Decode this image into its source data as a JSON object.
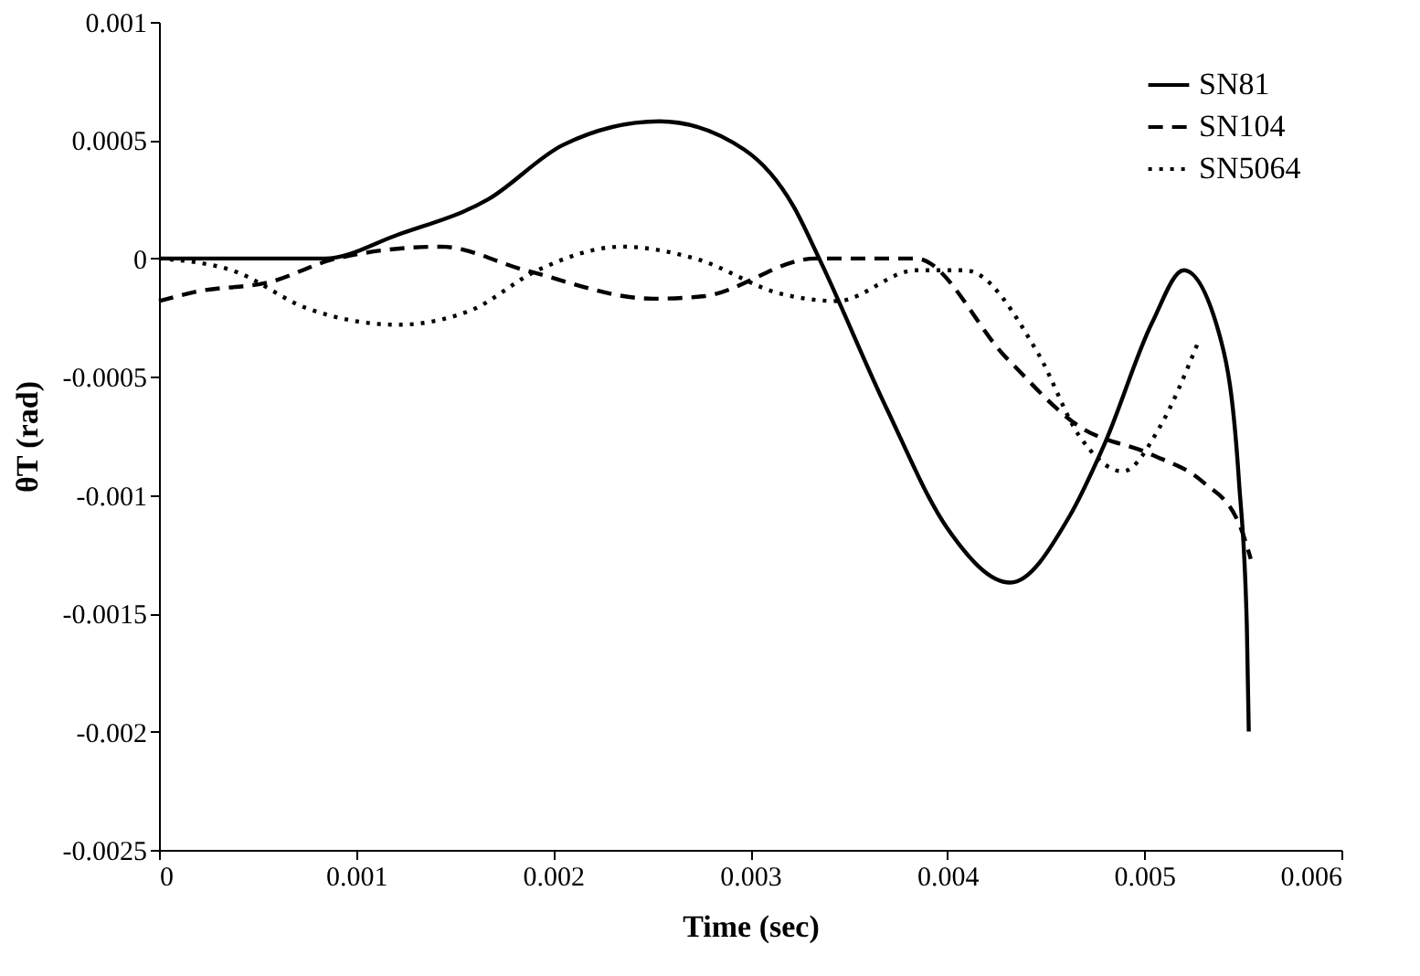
{
  "chart_data": {
    "type": "line",
    "xlabel": "Time (sec)",
    "ylabel": "θT (rad)",
    "xlim": [
      0,
      0.006
    ],
    "xticks": [
      0,
      0.001,
      0.002,
      0.003,
      0.004,
      0.005,
      0.006
    ],
    "ylim": [
      -0.0025,
      0.001
    ],
    "yticks": [
      -0.0025,
      -0.002,
      -0.0015,
      -0.001,
      -0.0005,
      0,
      0.0005,
      0.001
    ],
    "grid": false,
    "legend": "top right",
    "marker": "none",
    "series": [
      {
        "name": "SN81",
        "color": "#000000",
        "line_style": "solid",
        "x": [
          0,
          0.0004,
          0.00084,
          0.00121,
          0.00167,
          0.00205,
          0.00254,
          0.00297,
          0.00322,
          0.00335,
          0.00369,
          0.004,
          0.00432,
          0.00462,
          0.0048,
          0.00504,
          0.0052,
          0.00539,
          0.00548,
          0.00552,
          0.00553
        ],
        "values": [
          0,
          0,
          0,
          0.0001,
          0.00025,
          0.00048,
          0.00058,
          0.00046,
          0.00022,
          0,
          -0.00063,
          -0.00114,
          -0.00137,
          -0.00109,
          -0.00078,
          -0.00027,
          -5e-05,
          -0.00035,
          -0.00094,
          -0.00155,
          -0.002
        ]
      },
      {
        "name": "SN104",
        "color": "#000000",
        "line_style": "dashed",
        "x": [
          0,
          0.00019,
          0.00056,
          0.0009,
          0.00143,
          0.00186,
          0.00251,
          0.00276,
          0.00333,
          0.00356,
          0.00384,
          0.0043,
          0.00467,
          0.00504,
          0.00529,
          0.00548,
          0.00554
        ],
        "values": [
          -0.00018,
          -0.00014,
          -0.0001,
          0,
          5e-05,
          -5e-05,
          -0.00017,
          -0.00016,
          0,
          0,
          0,
          -0.00042,
          -0.00071,
          -0.00083,
          -0.00094,
          -0.00112,
          -0.00127
        ]
      },
      {
        "name": "SN5064",
        "color": "#000000",
        "line_style": "dotted",
        "x": [
          0,
          0.00037,
          0.00075,
          0.00121,
          0.00158,
          0.00192,
          0.00235,
          0.00272,
          0.00316,
          0.00344,
          0.00384,
          0.00409,
          0.00446,
          0.00467,
          0.00489,
          0.00508,
          0.00527
        ],
        "values": [
          0,
          -5e-05,
          -0.00021,
          -0.00028,
          -0.00022,
          -5e-05,
          5e-05,
          0,
          -0.00015,
          -0.00018,
          -5e-05,
          -5e-05,
          -0.0004,
          -0.00075,
          -0.0009,
          -0.00071,
          -0.00036
        ]
      }
    ]
  }
}
